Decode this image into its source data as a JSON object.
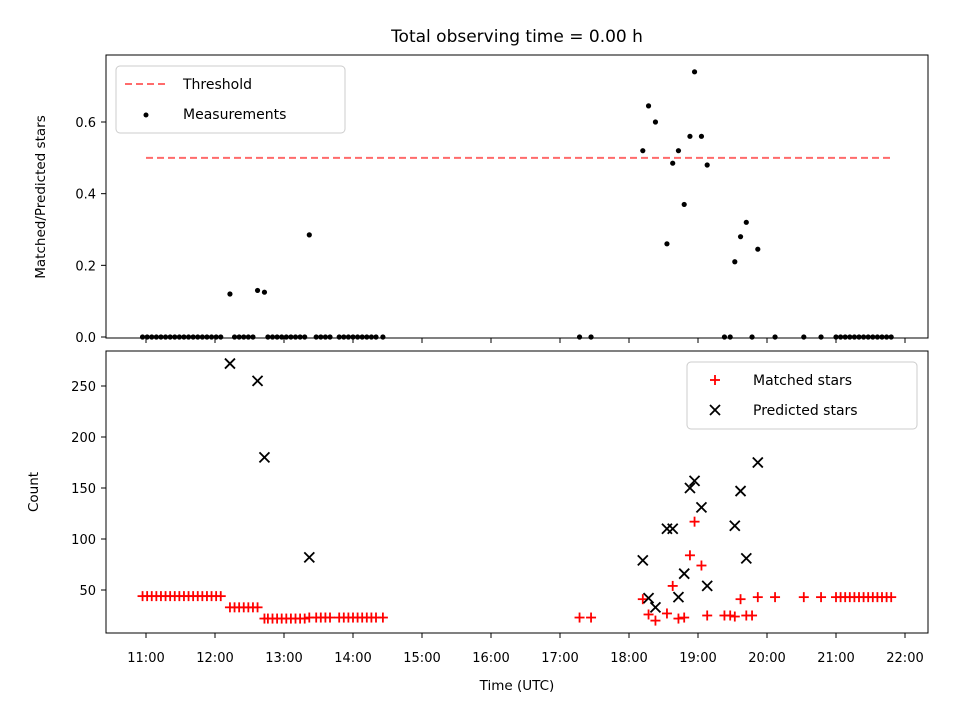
{
  "chart_data": [
    {
      "type": "scatter",
      "title": "Total observing time = 0.00 h",
      "xlabel": "",
      "ylabel": "Matched/Predicted stars",
      "xlim": [
        "10:50",
        "22:20"
      ],
      "ylim": [
        0,
        0.78
      ],
      "yticks": [
        "0.0",
        "0.2",
        "0.4",
        "0.6"
      ],
      "legend_position": "top-left",
      "threshold": {
        "name": "Threshold",
        "value": 0.5,
        "x_range": [
          "11:00",
          "21:50"
        ],
        "color": "#ff6b6b"
      },
      "series": [
        {
          "name": "Measurements",
          "color": "#000000",
          "points": [
            [
              "10:57",
              0
            ],
            [
              "11:01",
              0
            ],
            [
              "11:05",
              0
            ],
            [
              "11:09",
              0
            ],
            [
              "11:13",
              0
            ],
            [
              "11:17",
              0
            ],
            [
              "11:21",
              0
            ],
            [
              "11:25",
              0
            ],
            [
              "11:29",
              0
            ],
            [
              "11:33",
              0
            ],
            [
              "11:37",
              0
            ],
            [
              "11:41",
              0
            ],
            [
              "11:45",
              0
            ],
            [
              "11:49",
              0
            ],
            [
              "11:53",
              0
            ],
            [
              "11:57",
              0
            ],
            [
              "12:01",
              0
            ],
            [
              "12:05",
              0
            ],
            [
              "12:13",
              0.12
            ],
            [
              "12:17",
              0
            ],
            [
              "12:21",
              0
            ],
            [
              "12:25",
              0
            ],
            [
              "12:29",
              0
            ],
            [
              "12:33",
              0
            ],
            [
              "12:37",
              0.13
            ],
            [
              "12:43",
              0.125
            ],
            [
              "12:46",
              0
            ],
            [
              "12:50",
              0
            ],
            [
              "12:54",
              0
            ],
            [
              "12:58",
              0
            ],
            [
              "13:02",
              0
            ],
            [
              "13:06",
              0
            ],
            [
              "13:10",
              0
            ],
            [
              "13:14",
              0
            ],
            [
              "13:18",
              0
            ],
            [
              "13:22",
              0.285
            ],
            [
              "13:28",
              0
            ],
            [
              "13:32",
              0
            ],
            [
              "13:36",
              0
            ],
            [
              "13:40",
              0
            ],
            [
              "13:48",
              0
            ],
            [
              "13:52",
              0
            ],
            [
              "13:56",
              0
            ],
            [
              "14:00",
              0
            ],
            [
              "14:04",
              0
            ],
            [
              "14:08",
              0
            ],
            [
              "14:12",
              0
            ],
            [
              "14:16",
              0
            ],
            [
              "14:20",
              0
            ],
            [
              "14:26",
              0
            ],
            [
              "17:17",
              0
            ],
            [
              "17:27",
              0
            ],
            [
              "18:12",
              0.52
            ],
            [
              "18:17",
              0.645
            ],
            [
              "18:23",
              0.6
            ],
            [
              "18:33",
              0.26
            ],
            [
              "18:38",
              0.485
            ],
            [
              "18:43",
              0.52
            ],
            [
              "18:48",
              0.37
            ],
            [
              "18:53",
              0.56
            ],
            [
              "18:57",
              0.74
            ],
            [
              "19:03",
              0.56
            ],
            [
              "19:08",
              0.48
            ],
            [
              "19:23",
              0
            ],
            [
              "19:28",
              0
            ],
            [
              "19:32",
              0.21
            ],
            [
              "19:37",
              0.28
            ],
            [
              "19:42",
              0.32
            ],
            [
              "19:47",
              0
            ],
            [
              "19:52",
              0.245
            ],
            [
              "20:07",
              0
            ],
            [
              "20:32",
              0
            ],
            [
              "20:47",
              0
            ],
            [
              "21:00",
              0
            ],
            [
              "21:04",
              0
            ],
            [
              "21:08",
              0
            ],
            [
              "21:12",
              0
            ],
            [
              "21:16",
              0
            ],
            [
              "21:20",
              0
            ],
            [
              "21:24",
              0
            ],
            [
              "21:28",
              0
            ],
            [
              "21:32",
              0
            ],
            [
              "21:36",
              0
            ],
            [
              "21:40",
              0
            ],
            [
              "21:44",
              0
            ],
            [
              "21:48",
              0
            ]
          ]
        }
      ]
    },
    {
      "type": "scatter",
      "title": "",
      "xlabel": "Time (UTC)",
      "ylabel": "Count",
      "xlim": [
        "10:50",
        "22:20"
      ],
      "ylim": [
        15,
        285
      ],
      "xticks": [
        "11:00",
        "12:00",
        "13:00",
        "14:00",
        "15:00",
        "16:00",
        "17:00",
        "18:00",
        "19:00",
        "20:00",
        "21:00",
        "22:00"
      ],
      "yticks": [
        "50",
        "100",
        "150",
        "200",
        "250"
      ],
      "legend_position": "top-right",
      "series": [
        {
          "name": "Matched stars",
          "color": "#ff0000",
          "marker": "plus",
          "points": [
            [
              "10:57",
              44
            ],
            [
              "11:01",
              44
            ],
            [
              "11:05",
              44
            ],
            [
              "11:09",
              44
            ],
            [
              "11:13",
              44
            ],
            [
              "11:17",
              44
            ],
            [
              "11:21",
              44
            ],
            [
              "11:25",
              44
            ],
            [
              "11:29",
              44
            ],
            [
              "11:33",
              44
            ],
            [
              "11:37",
              44
            ],
            [
              "11:41",
              44
            ],
            [
              "11:45",
              44
            ],
            [
              "11:49",
              44
            ],
            [
              "11:53",
              44
            ],
            [
              "11:57",
              44
            ],
            [
              "12:01",
              44
            ],
            [
              "12:05",
              44
            ],
            [
              "12:13",
              33
            ],
            [
              "12:17",
              33
            ],
            [
              "12:21",
              33
            ],
            [
              "12:25",
              33
            ],
            [
              "12:29",
              33
            ],
            [
              "12:33",
              33
            ],
            [
              "12:37",
              33
            ],
            [
              "12:43",
              22
            ],
            [
              "12:46",
              22
            ],
            [
              "12:50",
              22
            ],
            [
              "12:54",
              22
            ],
            [
              "12:58",
              22
            ],
            [
              "13:02",
              22
            ],
            [
              "13:06",
              22
            ],
            [
              "13:10",
              22
            ],
            [
              "13:14",
              22
            ],
            [
              "13:18",
              22
            ],
            [
              "13:22",
              23
            ],
            [
              "13:28",
              23
            ],
            [
              "13:32",
              23
            ],
            [
              "13:36",
              23
            ],
            [
              "13:40",
              23
            ],
            [
              "13:48",
              23
            ],
            [
              "13:52",
              23
            ],
            [
              "13:56",
              23
            ],
            [
              "14:00",
              23
            ],
            [
              "14:04",
              23
            ],
            [
              "14:08",
              23
            ],
            [
              "14:12",
              23
            ],
            [
              "14:16",
              23
            ],
            [
              "14:20",
              23
            ],
            [
              "14:26",
              23
            ],
            [
              "17:17",
              23
            ],
            [
              "17:27",
              23
            ],
            [
              "18:12",
              41
            ],
            [
              "18:17",
              26
            ],
            [
              "18:23",
              20
            ],
            [
              "18:33",
              27
            ],
            [
              "18:38",
              54
            ],
            [
              "18:43",
              22
            ],
            [
              "18:48",
              23
            ],
            [
              "18:53",
              84
            ],
            [
              "18:57",
              117
            ],
            [
              "19:03",
              74
            ],
            [
              "19:08",
              25
            ],
            [
              "19:23",
              25
            ],
            [
              "19:28",
              25
            ],
            [
              "19:32",
              24
            ],
            [
              "19:37",
              41
            ],
            [
              "19:42",
              25
            ],
            [
              "19:47",
              25
            ],
            [
              "19:52",
              43
            ],
            [
              "20:07",
              43
            ],
            [
              "20:32",
              43
            ],
            [
              "20:47",
              43
            ],
            [
              "21:00",
              43
            ],
            [
              "21:04",
              43
            ],
            [
              "21:08",
              43
            ],
            [
              "21:12",
              43
            ],
            [
              "21:16",
              43
            ],
            [
              "21:20",
              43
            ],
            [
              "21:24",
              43
            ],
            [
              "21:28",
              43
            ],
            [
              "21:32",
              43
            ],
            [
              "21:36",
              43
            ],
            [
              "21:40",
              43
            ],
            [
              "21:44",
              43
            ],
            [
              "21:48",
              43
            ]
          ]
        },
        {
          "name": "Predicted stars",
          "color": "#000000",
          "marker": "x",
          "points": [
            [
              "12:13",
              272
            ],
            [
              "12:37",
              255
            ],
            [
              "12:43",
              180
            ],
            [
              "13:22",
              82
            ],
            [
              "18:12",
              79
            ],
            [
              "18:17",
              42
            ],
            [
              "18:23",
              33
            ],
            [
              "18:33",
              110
            ],
            [
              "18:38",
              110
            ],
            [
              "18:43",
              43
            ],
            [
              "18:48",
              66
            ],
            [
              "18:53",
              150
            ],
            [
              "18:57",
              157
            ],
            [
              "19:03",
              131
            ],
            [
              "19:08",
              54
            ],
            [
              "19:32",
              113
            ],
            [
              "19:37",
              147
            ],
            [
              "19:42",
              81
            ],
            [
              "19:52",
              175
            ]
          ]
        }
      ]
    }
  ]
}
